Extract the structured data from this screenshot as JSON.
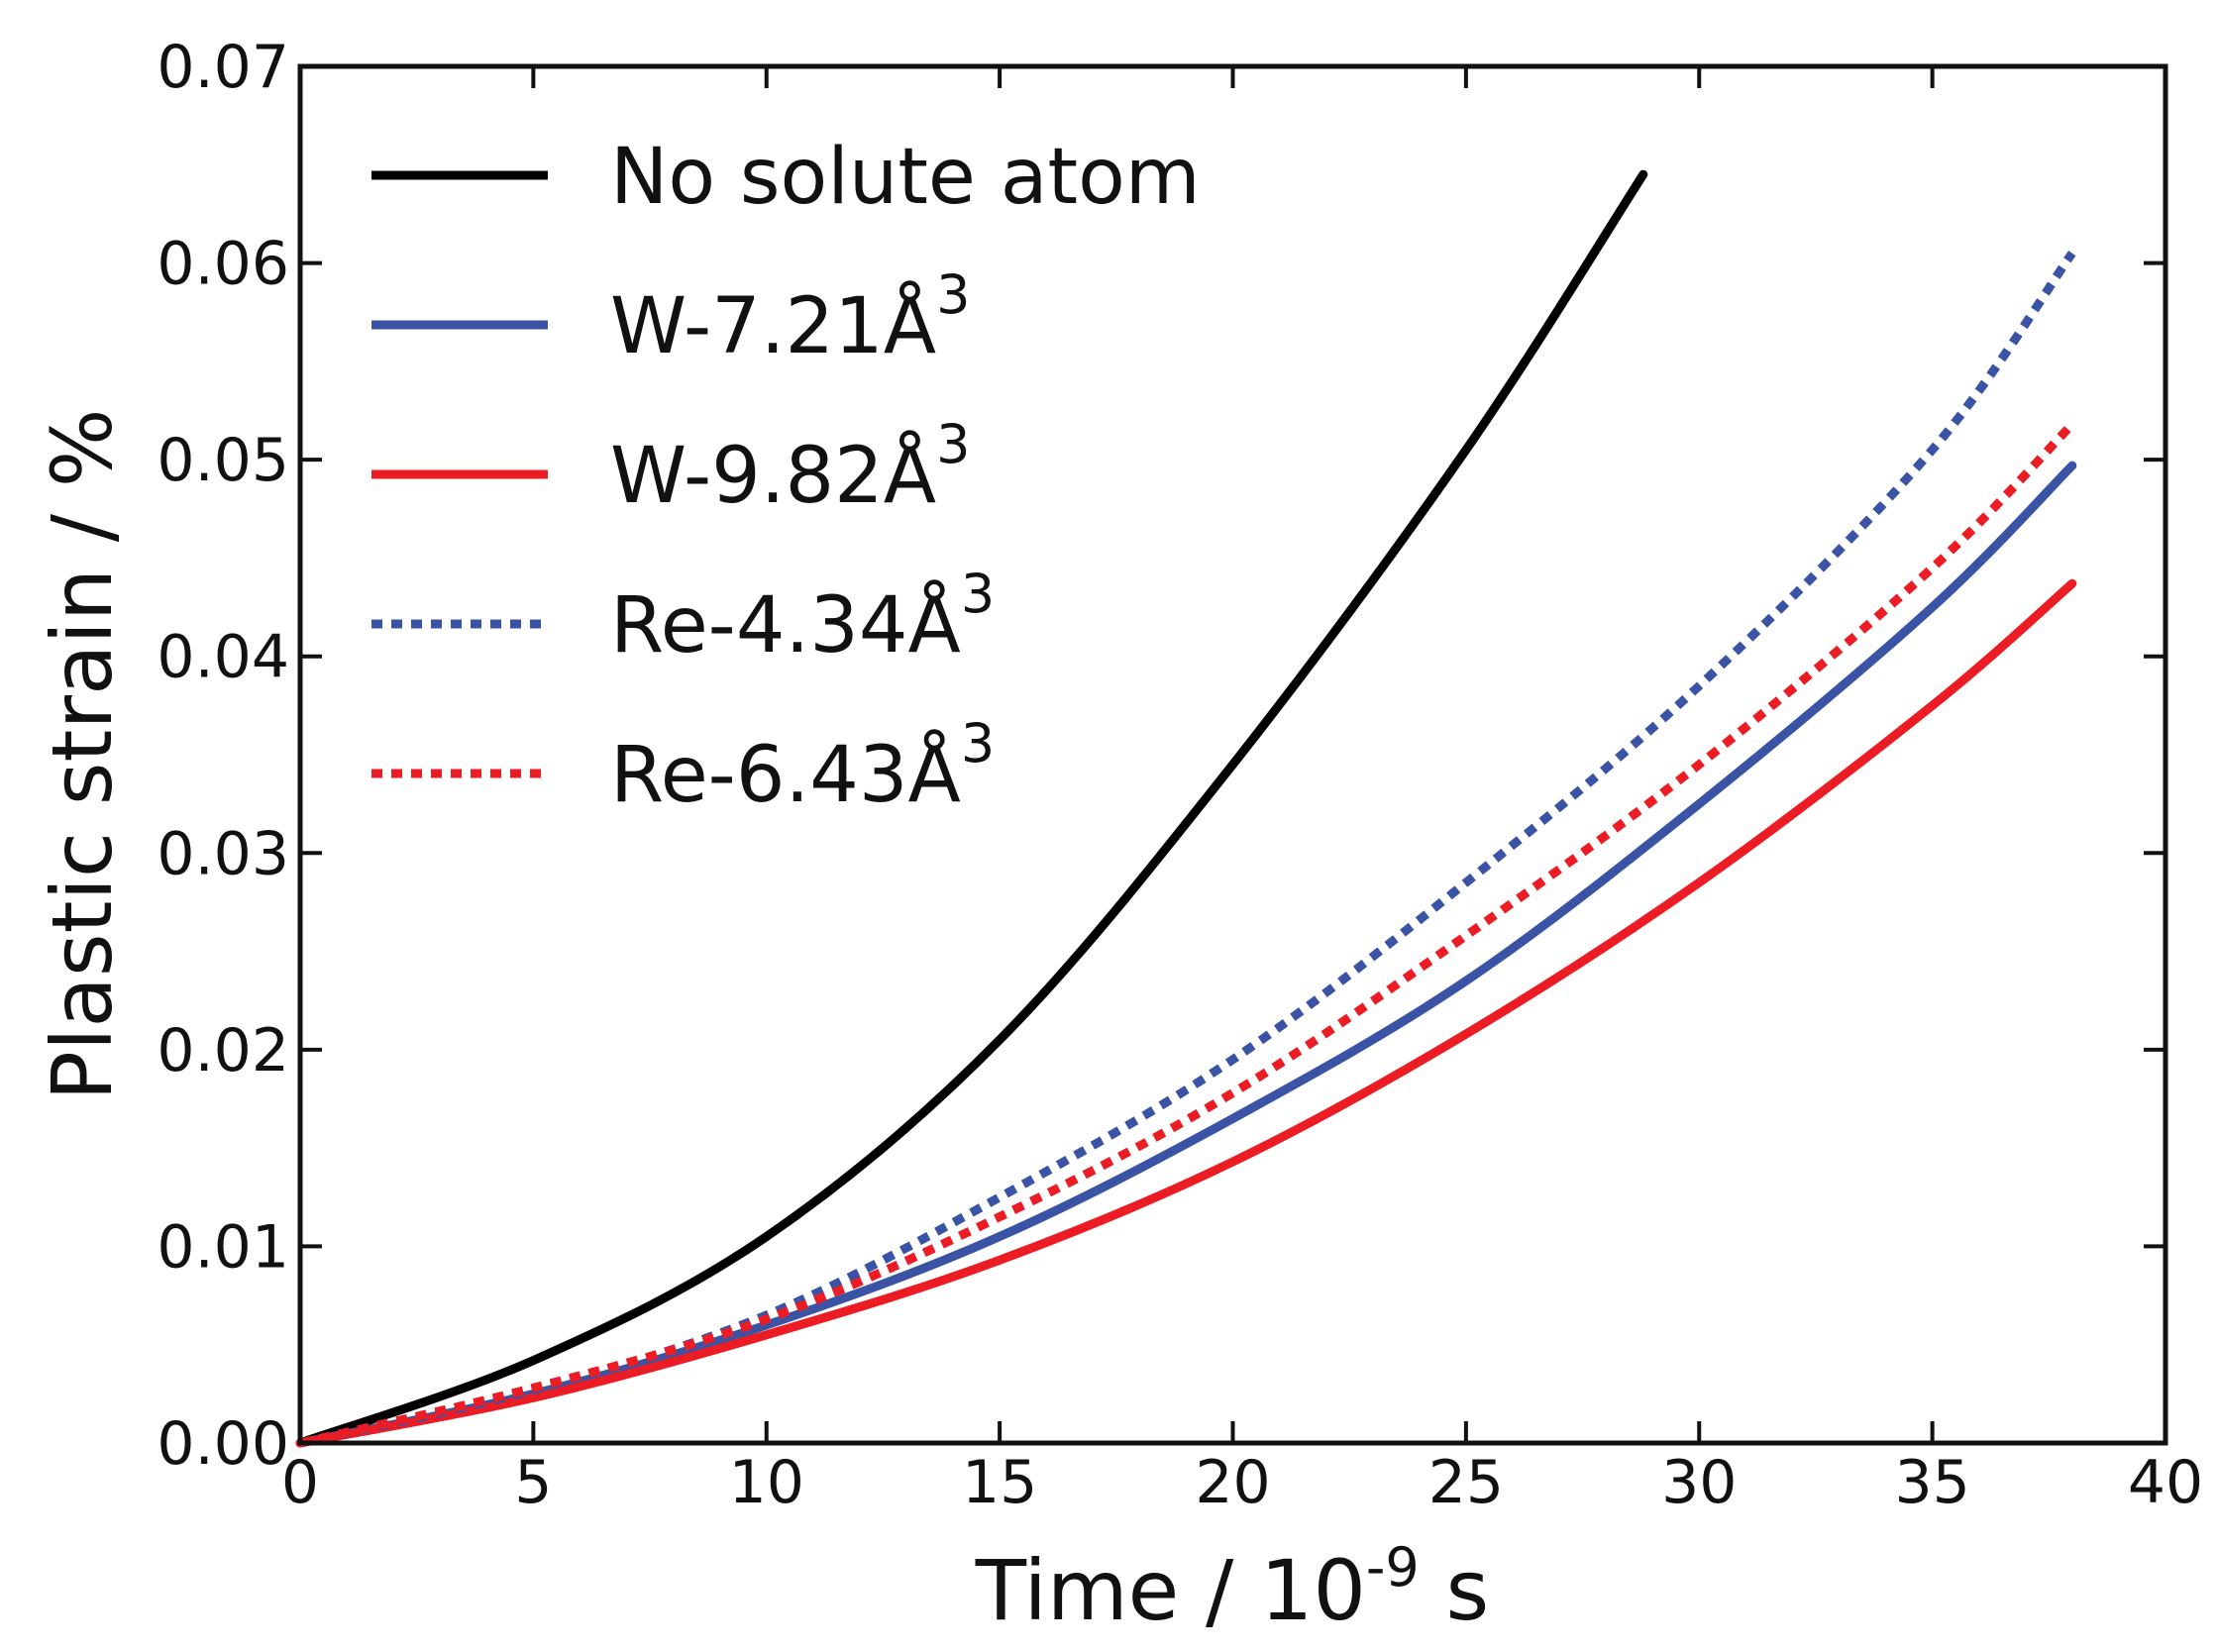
{
  "chart_data": {
    "type": "line",
    "title": "",
    "xlabel": "Time / 10",
    "xlabel_exponent": "-9",
    "xlabel_unit": " s",
    "ylabel": "Plastic strain / %",
    "xlim": [
      0,
      40
    ],
    "ylim": [
      0,
      0.07
    ],
    "grid": false,
    "legend_position": "top-left",
    "x_ticks": [
      0,
      5,
      10,
      15,
      20,
      25,
      30,
      35,
      40
    ],
    "x_tick_labels": [
      "0",
      "5",
      "10",
      "15",
      "20",
      "25",
      "30",
      "35",
      "40"
    ],
    "y_ticks": [
      0,
      0.01,
      0.02,
      0.03,
      0.04,
      0.05,
      0.06,
      0.07
    ],
    "y_tick_labels": [
      "0.00",
      "0.01",
      "0.02",
      "0.03",
      "0.04",
      "0.05",
      "0.06",
      "0.07"
    ],
    "series": [
      {
        "name": "No solute atom",
        "label_main": "No solute atom",
        "label_sup": "",
        "color": "#000000",
        "dash": "solid",
        "x": [
          0,
          5,
          10,
          15,
          20,
          25,
          28.8
        ],
        "y": [
          0,
          0.0042,
          0.0105,
          0.0205,
          0.0345,
          0.0505,
          0.0645
        ]
      },
      {
        "name": "W-7.21Å3",
        "label_main": "W-7.21Å",
        "label_sup": "3",
        "color": "#3a53a4",
        "dash": "solid",
        "x": [
          0,
          5,
          10,
          15,
          20,
          25,
          30,
          35,
          38
        ],
        "y": [
          0,
          0.0025,
          0.006,
          0.0105,
          0.0165,
          0.0235,
          0.0325,
          0.0425,
          0.0497
        ]
      },
      {
        "name": "W-9.82Å3",
        "label_main": "W-9.82Å",
        "label_sup": "3",
        "color": "#ec1c24",
        "dash": "solid",
        "x": [
          0,
          5,
          10,
          15,
          20,
          25,
          30,
          35,
          38
        ],
        "y": [
          0,
          0.0023,
          0.0055,
          0.0093,
          0.0143,
          0.0208,
          0.0285,
          0.0375,
          0.0437
        ]
      },
      {
        "name": "Re-4.34Å3",
        "label_main": "Re-4.34Å",
        "label_sup": "3",
        "color": "#3a53a4",
        "dash": "dotted",
        "x": [
          0,
          5,
          10,
          15,
          20,
          25,
          30,
          35,
          38
        ],
        "y": [
          0,
          0.0027,
          0.0065,
          0.0125,
          0.0195,
          0.0285,
          0.0385,
          0.0505,
          0.0605
        ]
      },
      {
        "name": "Re-6.43Å3",
        "label_main": "Re-6.43Å",
        "label_sup": "3",
        "color": "#ec1c24",
        "dash": "dotted",
        "x": [
          0,
          5,
          10,
          15,
          20,
          25,
          30,
          35,
          38
        ],
        "y": [
          0,
          0.0028,
          0.0063,
          0.0115,
          0.0178,
          0.0258,
          0.0345,
          0.0445,
          0.0518
        ]
      }
    ]
  }
}
